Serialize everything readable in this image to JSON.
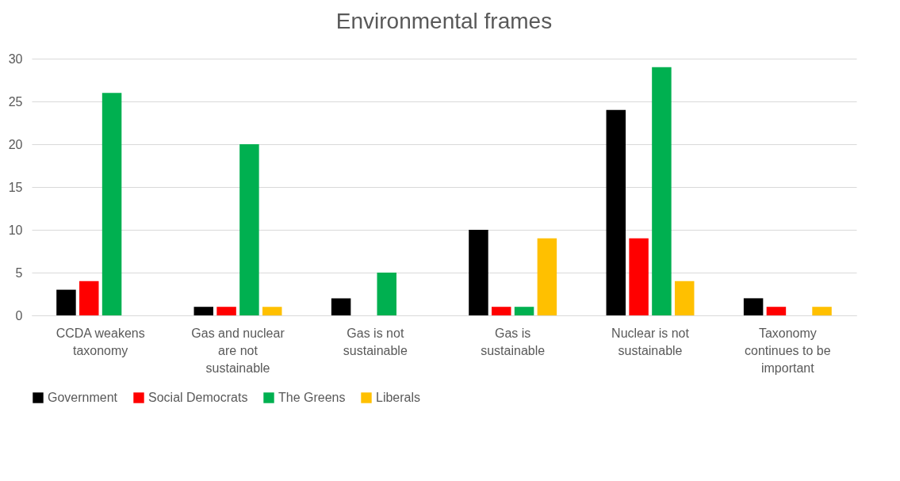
{
  "chart_data": {
    "type": "bar",
    "title": "Environmental frames",
    "categories": [
      "CCDA weakens taxonomy",
      "Gas and nuclear are not sustainable",
      "Gas is not sustainable",
      "Gas is sustainable",
      "Nuclear is not sustainable",
      "Taxonomy continues to be important"
    ],
    "series": [
      {
        "name": "Government",
        "color": "#000000",
        "values": [
          3,
          1,
          2,
          10,
          24,
          2
        ]
      },
      {
        "name": "Social Democrats",
        "color": "#ff0000",
        "values": [
          4,
          1,
          0,
          1,
          9,
          1
        ]
      },
      {
        "name": "The Greens",
        "color": "#00b050",
        "values": [
          26,
          20,
          5,
          1,
          29,
          0
        ]
      },
      {
        "name": "Liberals",
        "color": "#ffc000",
        "values": [
          0,
          1,
          0,
          9,
          4,
          1
        ]
      }
    ],
    "ylim": [
      0,
      30
    ],
    "yticks": [
      0,
      5,
      10,
      15,
      20,
      25,
      30
    ],
    "grid": "y",
    "legend": "bottom"
  }
}
